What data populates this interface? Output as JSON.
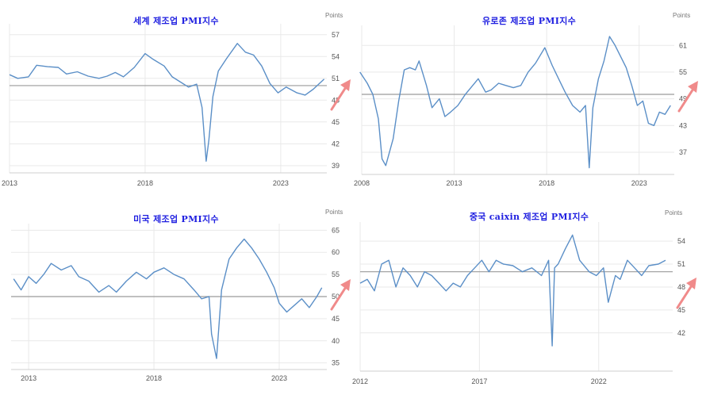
{
  "colors": {
    "series": "#5b8fc7",
    "title": "#1f1fe0",
    "arrow": "#f08a8a",
    "reference_line": "#9a9a9a",
    "grid": "#e9e9e9"
  },
  "chart_data": [
    {
      "id": "world",
      "type": "line",
      "title": "세계 제조업 PMI지수",
      "unit": "Points",
      "ylim": [
        38,
        58.5
      ],
      "yticks": [
        39,
        42,
        45,
        48,
        51,
        54,
        57
      ],
      "xlim": [
        2013,
        2024.7
      ],
      "xticks": [
        2013,
        2018,
        2023
      ],
      "reference_line": 50,
      "grid": true,
      "trend_arrow": "up",
      "series": [
        {
          "x": [
            2013.0,
            2013.3,
            2013.7,
            2014.0,
            2014.4,
            2014.8,
            2015.1,
            2015.5,
            2015.9,
            2016.3,
            2016.6,
            2016.9,
            2017.2,
            2017.6,
            2018.0,
            2018.3,
            2018.7,
            2019.0,
            2019.3,
            2019.6,
            2019.9,
            2020.1,
            2020.25,
            2020.35,
            2020.5,
            2020.7,
            2021.0,
            2021.4,
            2021.7,
            2022.0,
            2022.3,
            2022.6,
            2022.9,
            2023.2,
            2023.6,
            2023.9,
            2024.2,
            2024.6
          ],
          "values": [
            51.5,
            51.0,
            51.2,
            52.8,
            52.6,
            52.5,
            51.6,
            51.9,
            51.3,
            51.0,
            51.3,
            51.8,
            51.2,
            52.5,
            54.4,
            53.6,
            52.7,
            51.2,
            50.5,
            49.8,
            50.2,
            47.0,
            39.6,
            42.5,
            48.5,
            52.0,
            53.7,
            55.8,
            54.6,
            54.2,
            52.7,
            50.3,
            49.0,
            49.8,
            49.0,
            48.7,
            49.5,
            50.9
          ]
        }
      ]
    },
    {
      "id": "eurozone",
      "type": "line",
      "title": "유로존 제조업 PMI지수",
      "unit": "Points",
      "ylim": [
        32,
        65.5
      ],
      "yticks": [
        37,
        43,
        49,
        55,
        61
      ],
      "xlim": [
        2008,
        2024.9
      ],
      "xticks": [
        2008,
        2013,
        2018,
        2023
      ],
      "reference_line": 50,
      "grid": true,
      "trend_arrow": "up",
      "series": [
        {
          "x": [
            2007.9,
            2008.3,
            2008.6,
            2008.9,
            2009.1,
            2009.3,
            2009.7,
            2010.0,
            2010.3,
            2010.6,
            2010.9,
            2011.1,
            2011.5,
            2011.8,
            2012.2,
            2012.5,
            2012.8,
            2013.2,
            2013.6,
            2013.9,
            2014.3,
            2014.7,
            2015.0,
            2015.4,
            2015.8,
            2016.2,
            2016.6,
            2017.0,
            2017.4,
            2017.9,
            2018.3,
            2018.7,
            2019.0,
            2019.4,
            2019.8,
            2020.1,
            2020.3,
            2020.5,
            2020.8,
            2021.1,
            2021.4,
            2021.7,
            2022.0,
            2022.3,
            2022.6,
            2022.9,
            2023.2,
            2023.5,
            2023.8,
            2024.1,
            2024.4,
            2024.7
          ],
          "values": [
            55.0,
            52.5,
            50.0,
            44.5,
            35.5,
            34.0,
            40.0,
            48.5,
            55.5,
            56.0,
            55.5,
            57.5,
            52.0,
            47.0,
            49.0,
            45.0,
            46.0,
            47.5,
            50.0,
            51.5,
            53.5,
            50.5,
            51.0,
            52.5,
            52.0,
            51.5,
            52.0,
            55.0,
            57.0,
            60.5,
            56.5,
            53.0,
            50.5,
            47.5,
            46.0,
            47.5,
            33.5,
            47.0,
            53.5,
            57.5,
            63.0,
            61.0,
            58.5,
            56.0,
            52.0,
            47.5,
            48.5,
            43.5,
            43.0,
            46.0,
            45.5,
            47.5
          ]
        }
      ]
    },
    {
      "id": "usa",
      "type": "line",
      "title": "미국 제조업 PMI지수",
      "unit": "Points",
      "ylim": [
        33.5,
        66.5
      ],
      "yticks": [
        35,
        40,
        45,
        50,
        55,
        60,
        65
      ],
      "xlim": [
        2012.3,
        2024.9
      ],
      "xticks": [
        2013,
        2018,
        2023
      ],
      "reference_line": 50,
      "grid": true,
      "trend_arrow": "up",
      "series": [
        {
          "x": [
            2012.4,
            2012.7,
            2013.0,
            2013.3,
            2013.6,
            2013.9,
            2014.3,
            2014.7,
            2015.0,
            2015.4,
            2015.8,
            2016.2,
            2016.5,
            2016.9,
            2017.3,
            2017.7,
            2018.0,
            2018.4,
            2018.8,
            2019.2,
            2019.6,
            2019.9,
            2020.2,
            2020.3,
            2020.5,
            2020.7,
            2021.0,
            2021.3,
            2021.6,
            2021.9,
            2022.2,
            2022.5,
            2022.8,
            2023.0,
            2023.3,
            2023.6,
            2023.9,
            2024.2,
            2024.5,
            2024.7
          ],
          "values": [
            54.0,
            51.5,
            54.5,
            53.0,
            55.0,
            57.5,
            56.0,
            57.0,
            54.5,
            53.5,
            51.0,
            52.5,
            51.0,
            53.5,
            55.5,
            54.0,
            55.5,
            56.5,
            55.0,
            54.0,
            51.5,
            49.5,
            50.0,
            41.5,
            36.0,
            51.5,
            58.5,
            61.0,
            63.0,
            61.0,
            58.5,
            55.5,
            52.0,
            48.5,
            46.5,
            48.0,
            49.5,
            47.5,
            50.0,
            52.0
          ]
        }
      ]
    },
    {
      "id": "china",
      "type": "line",
      "title": "중국 caixin 제조업 PMI지수",
      "unit": "Points",
      "ylim": [
        37,
        56.5
      ],
      "yticks": [
        42,
        45,
        48,
        51,
        54
      ],
      "xlim": [
        2012,
        2025.1
      ],
      "xticks": [
        2012,
        2017,
        2022
      ],
      "reference_line": 50,
      "grid": true,
      "trend_arrow": "up",
      "series": [
        {
          "x": [
            2012.0,
            2012.3,
            2012.6,
            2012.9,
            2013.2,
            2013.5,
            2013.8,
            2014.1,
            2014.4,
            2014.7,
            2015.0,
            2015.3,
            2015.6,
            2015.9,
            2016.2,
            2016.5,
            2016.8,
            2017.1,
            2017.4,
            2017.7,
            2018.0,
            2018.4,
            2018.8,
            2019.2,
            2019.6,
            2019.9,
            2020.05,
            2020.15,
            2020.3,
            2020.6,
            2020.9,
            2021.2,
            2021.6,
            2021.9,
            2022.2,
            2022.4,
            2022.7,
            2022.9,
            2023.2,
            2023.5,
            2023.8,
            2024.1,
            2024.5,
            2024.8
          ],
          "values": [
            48.5,
            49.0,
            47.5,
            51.0,
            51.5,
            48.0,
            50.5,
            49.5,
            48.0,
            50.0,
            49.5,
            48.5,
            47.5,
            48.5,
            48.0,
            49.5,
            50.5,
            51.5,
            50.0,
            51.5,
            51.0,
            50.8,
            50.0,
            50.5,
            49.5,
            51.5,
            40.3,
            50.5,
            51.0,
            53.0,
            54.8,
            51.5,
            50.0,
            49.5,
            50.5,
            46.0,
            49.5,
            49.0,
            51.5,
            50.5,
            49.5,
            50.8,
            51.0,
            51.5
          ]
        }
      ]
    }
  ]
}
